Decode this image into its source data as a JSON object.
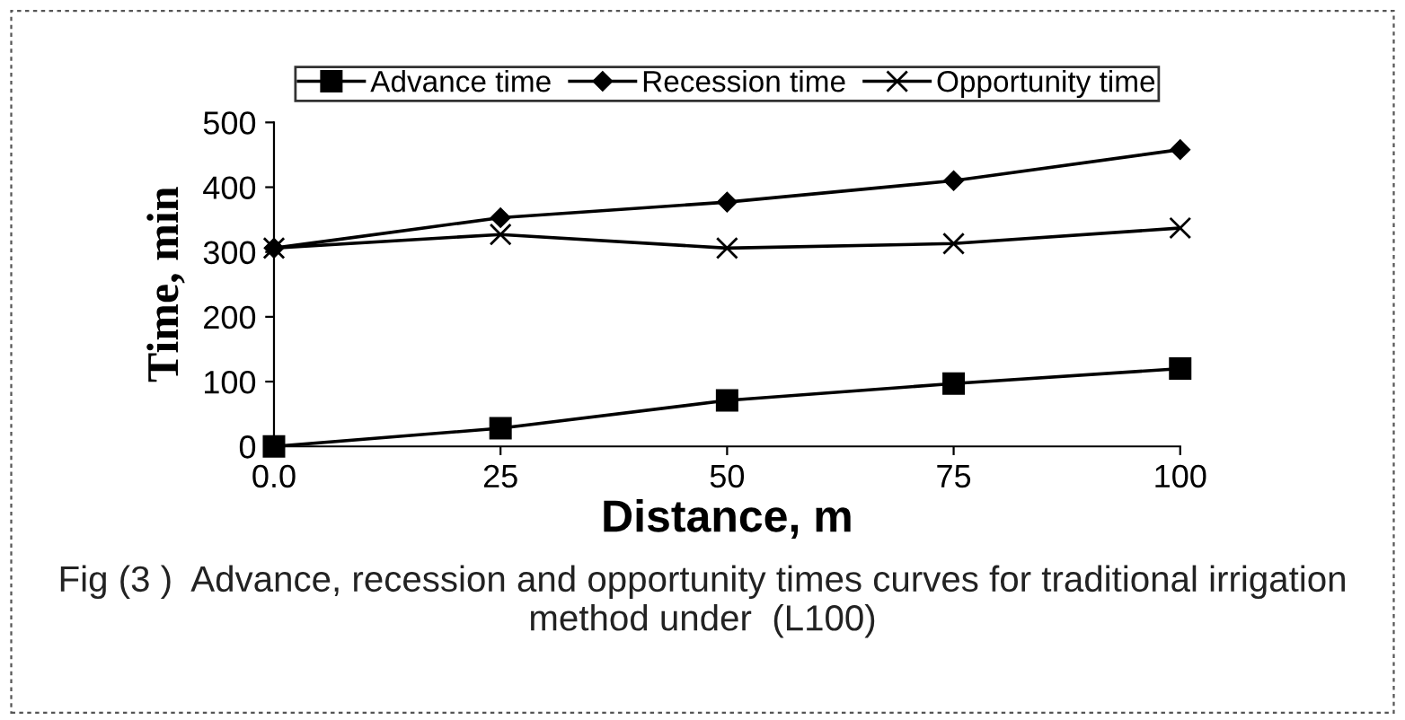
{
  "chart_data": {
    "type": "line",
    "xlabel": "Distance, m",
    "ylabel": "Time, min",
    "categories": [
      "0.0",
      "25",
      "50",
      "75",
      "100"
    ],
    "series": [
      {
        "name": "Advance time",
        "color": "#000000",
        "marker": "square",
        "values": [
          0,
          28,
          71,
          97,
          120
        ]
      },
      {
        "name": "Recession time",
        "color": "#000000",
        "marker": "diamond",
        "values": [
          306,
          353,
          377,
          410,
          458
        ]
      },
      {
        "name": "Opportunity time",
        "color": "#000000",
        "marker": "cross",
        "values": [
          306,
          327,
          306,
          313,
          337
        ]
      }
    ],
    "ylim": [
      0,
      500
    ],
    "yticks": [
      0,
      100,
      200,
      300,
      400,
      500
    ],
    "grid": false,
    "legend": "top",
    "annotations": [
      "Fig (3 )  Advance, recession and opportunity times curves for traditional irrigation method under  (L100)"
    ]
  }
}
